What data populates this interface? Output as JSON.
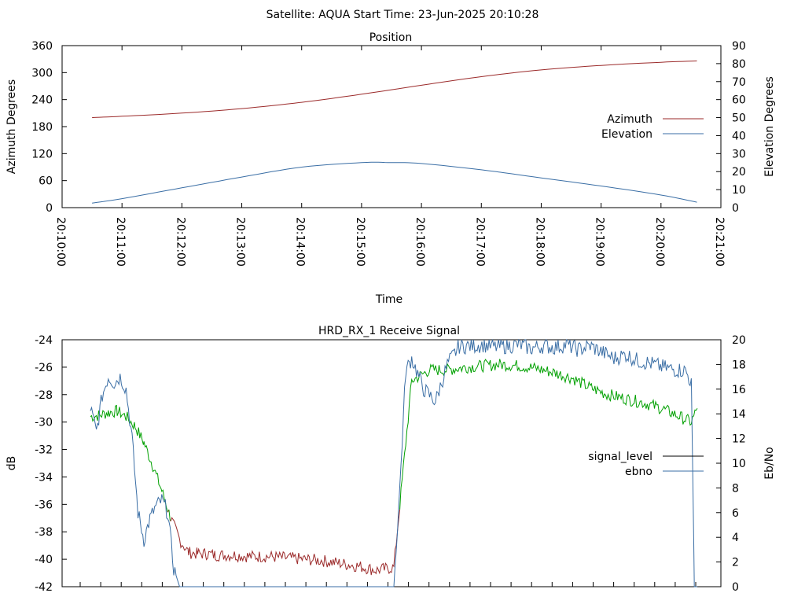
{
  "header": {
    "title": "Satellite: AQUA    Start Time: 23-Jun-2025 20:10:28"
  },
  "colors": {
    "azimuth": "#9b2a2a",
    "elevation": "#3a6ea5",
    "signal_level": "#000000",
    "ebno": "#3a6ea5",
    "signal_green": "#00a000",
    "signal_red": "#9b2a2a"
  },
  "chart_data": [
    {
      "type": "line",
      "title": "Position",
      "xlabel": "Time",
      "ylabel": "Azimuth Degrees",
      "y2label": "Elevation Degrees",
      "xlim": [
        "20:10:00",
        "20:21:00"
      ],
      "ylim": [
        0,
        360
      ],
      "y2lim": [
        0,
        90
      ],
      "x_ticks": [
        "20:10:00",
        "20:11:00",
        "20:12:00",
        "20:13:00",
        "20:14:00",
        "20:15:00",
        "20:16:00",
        "20:17:00",
        "20:18:00",
        "20:19:00",
        "20:20:00",
        "20:21:00"
      ],
      "y_ticks": [
        "0",
        "60",
        "120",
        "180",
        "240",
        "300",
        "360"
      ],
      "y2_ticks": [
        "0",
        "10",
        "20",
        "30",
        "40",
        "50",
        "60",
        "70",
        "80",
        "90"
      ],
      "legend_position": "right",
      "series": [
        {
          "name": "Azimuth",
          "axis": "y",
          "x": [
            "20:10:30",
            "20:11:00",
            "20:12:00",
            "20:13:00",
            "20:14:00",
            "20:15:00",
            "20:16:00",
            "20:17:00",
            "20:18:00",
            "20:19:00",
            "20:20:00",
            "20:20:36"
          ],
          "values": [
            200,
            203,
            210,
            220,
            234,
            252,
            272,
            291,
            306,
            316,
            323,
            326
          ]
        },
        {
          "name": "Elevation",
          "axis": "y2",
          "x": [
            "20:10:30",
            "20:11:00",
            "20:12:00",
            "20:13:00",
            "20:14:00",
            "20:15:00",
            "20:15:30",
            "20:16:00",
            "20:17:00",
            "20:18:00",
            "20:19:00",
            "20:20:00",
            "20:20:36"
          ],
          "values": [
            2.5,
            5,
            11,
            17,
            22.5,
            25,
            25,
            24.5,
            21,
            16.5,
            12,
            7,
            3
          ]
        }
      ]
    },
    {
      "type": "line",
      "title": "HRD_RX_1 Receive Signal",
      "ylabel": "dB",
      "y2label": "Eb/No",
      "ylim": [
        -42,
        -24
      ],
      "y2lim": [
        0,
        20
      ],
      "y_ticks": [
        "-42",
        "-40",
        "-38",
        "-36",
        "-34",
        "-32",
        "-30",
        "-28",
        "-26",
        "-24"
      ],
      "y2_ticks": [
        "0",
        "2",
        "4",
        "6",
        "8",
        "10",
        "12",
        "14",
        "16",
        "18",
        "20"
      ],
      "legend_position": "right",
      "series": [
        {
          "name": "signal_level",
          "axis": "y",
          "x_seconds": [
            0,
            15,
            30,
            45,
            60,
            75,
            90,
            105,
            120,
            135,
            150,
            165,
            180,
            195,
            210,
            240,
            270,
            300,
            330,
            360,
            390,
            420,
            450,
            480,
            510,
            540,
            570,
            600,
            630,
            660,
            690,
            720,
            750,
            780,
            810,
            840,
            870,
            900,
            930,
            960,
            990,
            1010,
            1020
          ],
          "values": [
            -29.6,
            -29.5,
            -29.3,
            -29.2,
            -29.6,
            -30.3,
            -31.5,
            -33.2,
            -35.0,
            -37.0,
            -38.6,
            -39.5,
            -39.6,
            -39.6,
            -39.7,
            -39.7,
            -39.8,
            -39.8,
            -39.9,
            -40.0,
            -40.1,
            -40.3,
            -40.5,
            -40.8,
            -40.6,
            -27.0,
            -26.2,
            -26.2,
            -26.0,
            -25.9,
            -25.8,
            -25.9,
            -26.1,
            -26.4,
            -26.8,
            -27.5,
            -28.0,
            -28.3,
            -28.6,
            -29.0,
            -29.6,
            -30.0,
            -29.0
          ]
        },
        {
          "name": "ebno",
          "axis": "y2",
          "x_seconds": [
            0,
            10,
            20,
            30,
            40,
            50,
            60,
            70,
            80,
            90,
            100,
            110,
            120,
            130,
            140,
            150,
            160,
            510,
            520,
            530,
            540,
            560,
            580,
            600,
            620,
            640,
            660,
            680,
            700,
            720,
            740,
            760,
            780,
            800,
            820,
            840,
            860,
            880,
            900,
            920,
            940,
            960,
            980,
            1000,
            1010,
            1015,
            1020
          ],
          "values": [
            14.5,
            12.5,
            15.5,
            17.0,
            16.5,
            17.0,
            16.0,
            12.0,
            6.0,
            3.8,
            5.5,
            6.5,
            7.0,
            6.0,
            1.5,
            0,
            0,
            0,
            8.0,
            17.5,
            18.5,
            16.0,
            15.0,
            18.0,
            19.5,
            19.5,
            19.6,
            19.4,
            19.5,
            19.6,
            19.3,
            19.5,
            19.4,
            19.6,
            19.2,
            19.5,
            19.0,
            18.5,
            18.8,
            18.3,
            18.1,
            17.8,
            17.6,
            17.5,
            16.5,
            0,
            0
          ]
        }
      ]
    }
  ]
}
